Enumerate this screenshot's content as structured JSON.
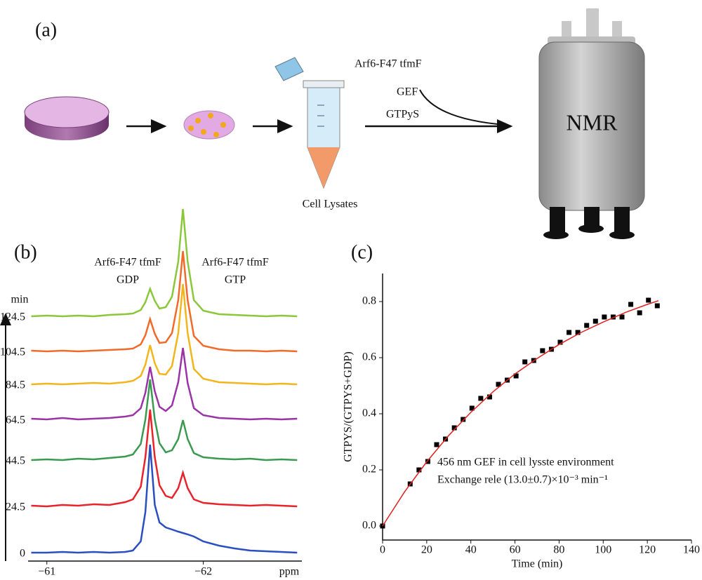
{
  "diagram": {
    "label": "(a)",
    "reagent": "Arf6-F47 tfmF",
    "gef": "GEF",
    "nucleotide": "GTPyS",
    "lysate": "Cell Lysates",
    "instrument": "NMR"
  },
  "chart_data": [
    {
      "type": "spectra",
      "panel": "(b)",
      "x_label": "ppm",
      "y_label": "min",
      "annotations": [
        "Arf6-F47 tfmF",
        "GDP",
        "Arf6-F47 tfmF",
        "GTP"
      ],
      "xlim": [
        -60.88,
        -62.63
      ],
      "xticks": [
        {
          "value": -61,
          "label": "−61"
        },
        {
          "value": -62,
          "label": "−62"
        }
      ],
      "x": [
        -60.9,
        -61.0,
        -61.1,
        -61.2,
        -61.3,
        -61.4,
        -61.5,
        -61.55,
        -61.6,
        -61.63,
        -61.66,
        -61.69,
        -61.72,
        -61.76,
        -61.8,
        -61.84,
        -61.87,
        -61.9,
        -61.94,
        -62.0,
        -62.1,
        -62.2,
        -62.3,
        -62.4,
        -62.5,
        -62.6
      ],
      "series": [
        {
          "name": "0",
          "color": "#2a4fc0",
          "values": [
            2,
            2,
            3,
            2,
            3,
            2,
            3,
            5,
            18,
            60,
            156,
            70,
            45,
            38,
            35,
            32,
            30,
            28,
            25,
            18,
            12,
            8,
            5,
            4,
            3,
            2
          ]
        },
        {
          "name": "24.5",
          "color": "#e8232a",
          "values": [
            3,
            2,
            4,
            3,
            5,
            4,
            8,
            12,
            30,
            72,
            140,
            72,
            32,
            17,
            14,
            28,
            50,
            28,
            12,
            7,
            5,
            4,
            3,
            4,
            3,
            2
          ]
        },
        {
          "name": "44.5",
          "color": "#3a9a4f",
          "values": [
            2,
            3,
            2,
            4,
            3,
            5,
            7,
            10,
            25,
            60,
            117,
            60,
            26,
            13,
            16,
            32,
            59,
            32,
            12,
            6,
            4,
            3,
            4,
            2,
            3,
            2
          ]
        },
        {
          "name": "64.5",
          "color": "#9a32a8",
          "values": [
            3,
            2,
            4,
            2,
            3,
            4,
            6,
            8,
            18,
            40,
            77,
            42,
            20,
            14,
            22,
            55,
            104,
            54,
            18,
            8,
            4,
            3,
            2,
            3,
            2,
            3
          ]
        },
        {
          "name": "84.5",
          "color": "#f2b51c",
          "values": [
            2,
            3,
            2,
            3,
            4,
            3,
            5,
            7,
            14,
            30,
            58,
            32,
            17,
            16,
            28,
            75,
            145,
            75,
            24,
            10,
            5,
            4,
            3,
            2,
            3,
            2
          ]
        },
        {
          "name": "104.5",
          "color": "#f26a2a",
          "values": [
            3,
            2,
            3,
            2,
            3,
            4,
            5,
            6,
            12,
            25,
            48,
            27,
            14,
            15,
            28,
            75,
            145,
            75,
            24,
            10,
            5,
            3,
            3,
            2,
            3,
            2
          ]
        },
        {
          "name": "124.5",
          "color": "#8ac83a",
          "values": [
            2,
            3,
            2,
            3,
            2,
            4,
            5,
            6,
            11,
            22,
            41,
            24,
            13,
            15,
            30,
            80,
            155,
            80,
            25,
            10,
            5,
            4,
            3,
            2,
            3,
            2
          ]
        }
      ]
    },
    {
      "type": "scatter",
      "panel": "(c)",
      "x_label": "Time (min)",
      "y_label": "GTPYS/(GTPYS+GDP)",
      "annotations": [
        "456 nm GEF in cell lysste environment",
        "Exchange rele (13.0±0.7)×10⁻³ min⁻¹"
      ],
      "xlim": [
        0,
        140
      ],
      "ylim": [
        -0.05,
        0.9
      ],
      "xticks": [
        0,
        20,
        40,
        60,
        80,
        100,
        120,
        140
      ],
      "yticks": [
        {
          "value": 0,
          "label": "0.0"
        },
        0.2,
        0.4,
        0.6,
        0.8
      ],
      "series": [
        {
          "type": "scatter",
          "color": "#000000",
          "x": [
            0,
            12.5,
            16.5,
            20.5,
            24.5,
            28.5,
            32.5,
            36.5,
            40.5,
            44.5,
            48.5,
            52.5,
            56.5,
            60.5,
            64.5,
            68.5,
            72.5,
            76.5,
            80.5,
            84.5,
            88.5,
            92.5,
            96.5,
            100.5,
            104.5,
            108.5,
            112.5,
            116.5,
            120.5,
            124.5
          ],
          "values": [
            0.0,
            0.15,
            0.2,
            0.23,
            0.29,
            0.31,
            0.35,
            0.38,
            0.42,
            0.455,
            0.46,
            0.505,
            0.52,
            0.535,
            0.585,
            0.59,
            0.625,
            0.63,
            0.655,
            0.69,
            0.69,
            0.715,
            0.73,
            0.745,
            0.745,
            0.745,
            0.79,
            0.76,
            0.805,
            0.785
          ]
        },
        {
          "type": "line",
          "color": "#e02020",
          "x": [
            0,
            10,
            20,
            30,
            40,
            50,
            60,
            70,
            80,
            90,
            100,
            110,
            120,
            125
          ],
          "values": [
            0,
            0.122,
            0.229,
            0.323,
            0.405,
            0.478,
            0.542,
            0.597,
            0.647,
            0.69,
            0.727,
            0.761,
            0.79,
            0.803
          ]
        }
      ]
    }
  ]
}
